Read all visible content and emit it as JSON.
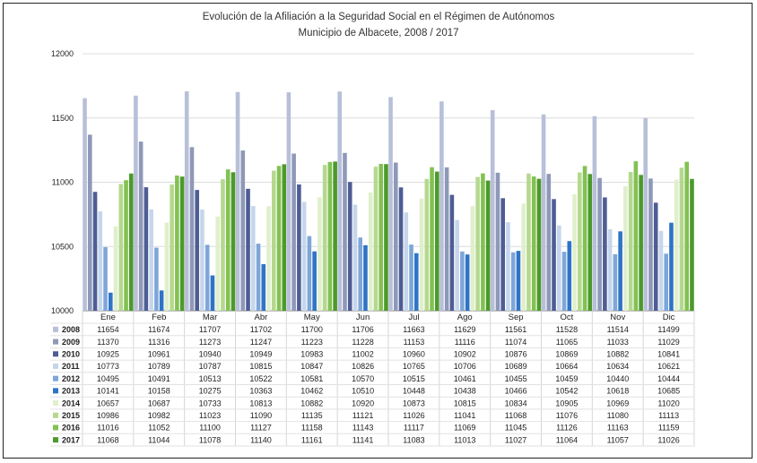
{
  "chart_data": {
    "type": "bar",
    "title": "Evolución de la Afiliación a la Seguridad Social en el Régimen de Autónomos",
    "subtitle": "Municipio de Albacete, 2008 / 2017",
    "xlabel": "",
    "ylabel": "",
    "ylim": [
      10000,
      12000
    ],
    "yticks": [
      10000,
      10500,
      11000,
      11500,
      12000
    ],
    "grid": true,
    "legend": "table-below",
    "categories": [
      "Ene",
      "Feb",
      "Mar",
      "Abr",
      "May",
      "Jun",
      "Jul",
      "Ago",
      "Sep",
      "Oct",
      "Nov",
      "Dic"
    ],
    "series": [
      {
        "name": "2008",
        "color": "#b8bfd8",
        "values": [
          11654,
          11674,
          11707,
          11702,
          11700,
          11706,
          11663,
          11629,
          11561,
          11528,
          11514,
          11499
        ]
      },
      {
        "name": "2009",
        "color": "#8e98b8",
        "values": [
          11370,
          11316,
          11273,
          11247,
          11223,
          11228,
          11153,
          11116,
          11074,
          11065,
          11033,
          11029
        ]
      },
      {
        "name": "2010",
        "color": "#4e5d94",
        "values": [
          10925,
          10961,
          10940,
          10949,
          10983,
          11002,
          10960,
          10902,
          10876,
          10869,
          10882,
          10841
        ]
      },
      {
        "name": "2011",
        "color": "#c5d6ec",
        "values": [
          10773,
          10789,
          10787,
          10815,
          10847,
          10826,
          10765,
          10706,
          10689,
          10664,
          10634,
          10621
        ]
      },
      {
        "name": "2012",
        "color": "#7ea6d8",
        "values": [
          10495,
          10491,
          10513,
          10522,
          10581,
          10570,
          10515,
          10461,
          10455,
          10459,
          10440,
          10444
        ]
      },
      {
        "name": "2013",
        "color": "#2f74c6",
        "values": [
          10141,
          10158,
          10275,
          10363,
          10462,
          10510,
          10448,
          10438,
          10466,
          10542,
          10618,
          10685
        ]
      },
      {
        "name": "2014",
        "color": "#e0efcc",
        "values": [
          10657,
          10687,
          10733,
          10813,
          10882,
          10920,
          10873,
          10815,
          10834,
          10905,
          10969,
          11020
        ]
      },
      {
        "name": "2015",
        "color": "#b5d88e",
        "values": [
          10986,
          10982,
          11023,
          11090,
          11135,
          11121,
          11026,
          11041,
          11068,
          11076,
          11080,
          11113
        ]
      },
      {
        "name": "2016",
        "color": "#82c152",
        "values": [
          11016,
          11052,
          11100,
          11127,
          11158,
          11143,
          11117,
          11069,
          11045,
          11126,
          11163,
          11159
        ]
      },
      {
        "name": "2017",
        "color": "#4c9a2a",
        "values": [
          11068,
          11044,
          11078,
          11140,
          11161,
          11141,
          11083,
          11013,
          11027,
          11064,
          11057,
          11026
        ]
      }
    ]
  }
}
